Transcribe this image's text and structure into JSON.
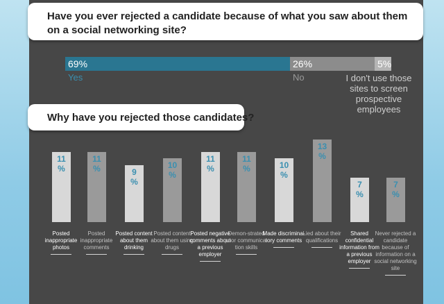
{
  "question1": "Have you ever rejected a candidate because of what you saw about them on a social networking site?",
  "question2": "Why have you rejected those candidates?",
  "colors": {
    "yes": "#2a7691",
    "no": "#8c8c8c",
    "other": "#b5b5b5",
    "bar_light": "#d8d8d8",
    "bar_dark": "#9a9a9a",
    "accent": "#3a8fb0"
  },
  "chart_data": [
    {
      "type": "bar",
      "orientation": "horizontal-stacked",
      "categories": [
        "Yes",
        "No",
        "I don't use those sites to screen prospective employees"
      ],
      "values": [
        69,
        26,
        5
      ],
      "value_labels": [
        "69%",
        "26%",
        "5%"
      ]
    },
    {
      "type": "bar",
      "categories": [
        "Posted inappropriate photos",
        "Posted inappropriate comments",
        "Posted content about them drinking",
        "Posted content about them using drugs",
        "Posted negative comments about a previous employer",
        "Demon-strated poor communica-tion skills",
        "Made discrimina-tory comments",
        "Lied about their qualifications",
        "Shared confidential information from a previous employer",
        "Never rejected a candidate because of information on a social networking site"
      ],
      "values": [
        11,
        11,
        9,
        10,
        11,
        11,
        10,
        13,
        7,
        7
      ],
      "ylim": [
        0,
        13
      ]
    }
  ]
}
